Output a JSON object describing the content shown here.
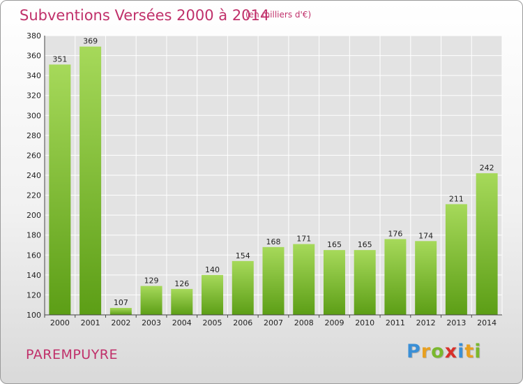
{
  "header": {
    "title": "Subventions Versées 2000 à 2014",
    "subtitle": "(en milliers d'€)"
  },
  "footer": {
    "commune": "PAREMPUYRE",
    "logo": [
      "P",
      "r",
      "o",
      "x",
      "i",
      "t",
      "i"
    ]
  },
  "colors": {
    "bar_top": "#a6d95a",
    "bar_bottom": "#5c9e16",
    "title": "#c0306a",
    "grid": "#ffffff",
    "plot_bg": "#e3e3e3"
  },
  "chart_data": {
    "type": "bar",
    "title": "Subventions Versées 2000 à 2014",
    "subtitle": "(en milliers d'€)",
    "xlabel": "",
    "ylabel": "",
    "categories": [
      "2000",
      "2001",
      "2002",
      "2003",
      "2004",
      "2005",
      "2006",
      "2007",
      "2008",
      "2009",
      "2010",
      "2011",
      "2012",
      "2013",
      "2014"
    ],
    "values": [
      351,
      369,
      107,
      129,
      126,
      140,
      154,
      168,
      171,
      165,
      165,
      176,
      174,
      211,
      242
    ],
    "ylim": [
      100,
      380
    ],
    "yticks": [
      100,
      120,
      140,
      160,
      180,
      200,
      220,
      240,
      260,
      280,
      300,
      320,
      340,
      360,
      380
    ],
    "grid": true,
    "legend": "none"
  }
}
